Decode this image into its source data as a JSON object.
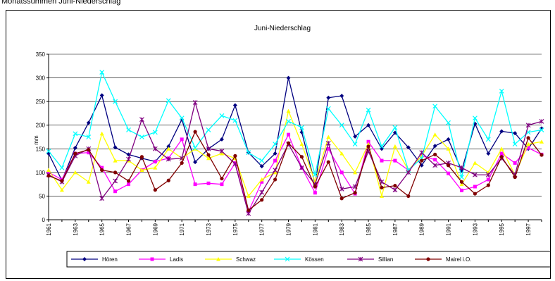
{
  "page": {
    "caption": "Monatssummen Juni-Niederschlag"
  },
  "chart_data": {
    "type": "line",
    "title": "Juni-Niederschlag",
    "xlabel": "",
    "ylabel": "mm",
    "ylim": [
      0,
      350
    ],
    "yticks": [
      0,
      50,
      100,
      150,
      200,
      250,
      300,
      350
    ],
    "x": [
      1961,
      1962,
      1963,
      1964,
      1965,
      1966,
      1967,
      1968,
      1969,
      1970,
      1971,
      1972,
      1973,
      1974,
      1975,
      1976,
      1977,
      1978,
      1979,
      1980,
      1981,
      1982,
      1983,
      1984,
      1985,
      1986,
      1987,
      1988,
      1989,
      1990,
      1991,
      1992,
      1993,
      1994,
      1995,
      1996,
      1997,
      1998
    ],
    "xtick_labels": [
      "1961",
      "1963",
      "1965",
      "1967",
      "1969",
      "1971",
      "1973",
      "1975",
      "1977",
      "1979",
      "1981",
      "1983",
      "1985",
      "1987",
      "1989",
      "1991",
      "1993",
      "1995",
      "1997"
    ],
    "grid": "horizontal",
    "legend_position": "bottom",
    "series": [
      {
        "name": "Hören",
        "color": "#000080",
        "marker": "diamond",
        "values": [
          140,
          83,
          152,
          205,
          263,
          153,
          138,
          130,
          123,
          155,
          212,
          122,
          150,
          170,
          242,
          142,
          113,
          140,
          300,
          185,
          75,
          258,
          262,
          176,
          200,
          150,
          184,
          153,
          115,
          156,
          170,
          104,
          203,
          140,
          187,
          183,
          150,
          193
        ]
      },
      {
        "name": "Ladis",
        "color": "#ff00ff",
        "marker": "square",
        "values": [
          100,
          85,
          140,
          142,
          110,
          60,
          75,
          105,
          123,
          130,
          170,
          75,
          77,
          75,
          120,
          17,
          80,
          125,
          180,
          110,
          57,
          150,
          100,
          55,
          165,
          125,
          125,
          105,
          135,
          127,
          98,
          62,
          70,
          85,
          140,
          120,
          152,
          138
        ]
      },
      {
        "name": "Schwaz",
        "color": "#ffff00",
        "marker": "triangle",
        "values": [
          105,
          63,
          100,
          80,
          182,
          125,
          125,
          105,
          110,
          150,
          130,
          150,
          130,
          140,
          130,
          50,
          85,
          100,
          230,
          160,
          80,
          175,
          140,
          100,
          160,
          50,
          155,
          105,
          135,
          180,
          150,
          75,
          120,
          100,
          150,
          95,
          160,
          165
        ]
      },
      {
        "name": "Kössen",
        "color": "#00ffff",
        "marker": "x",
        "values": [
          145,
          110,
          182,
          175,
          312,
          250,
          190,
          175,
          185,
          252,
          215,
          152,
          190,
          220,
          210,
          142,
          125,
          160,
          208,
          195,
          95,
          235,
          200,
          160,
          232,
          155,
          195,
          105,
          130,
          240,
          205,
          90,
          215,
          170,
          272,
          160,
          185,
          190
        ]
      },
      {
        "name": "Sillian",
        "color": "#800080",
        "marker": "star",
        "values": [
          95,
          80,
          135,
          150,
          45,
          82,
          128,
          212,
          150,
          128,
          130,
          248,
          150,
          145,
          118,
          13,
          58,
          105,
          160,
          110,
          75,
          162,
          65,
          70,
          145,
          80,
          63,
          100,
          142,
          115,
          120,
          110,
          95,
          95,
          130,
          95,
          200,
          208
        ]
      },
      {
        "name": "Mairel i.O.",
        "color": "#800000",
        "marker": "circle",
        "values": [
          93,
          82,
          140,
          148,
          105,
          100,
          82,
          133,
          63,
          83,
          120,
          186,
          137,
          87,
          135,
          20,
          42,
          85,
          162,
          133,
          70,
          122,
          45,
          57,
          155,
          68,
          72,
          50,
          125,
          138,
          115,
          80,
          55,
          73,
          133,
          90,
          173,
          137
        ]
      }
    ]
  }
}
